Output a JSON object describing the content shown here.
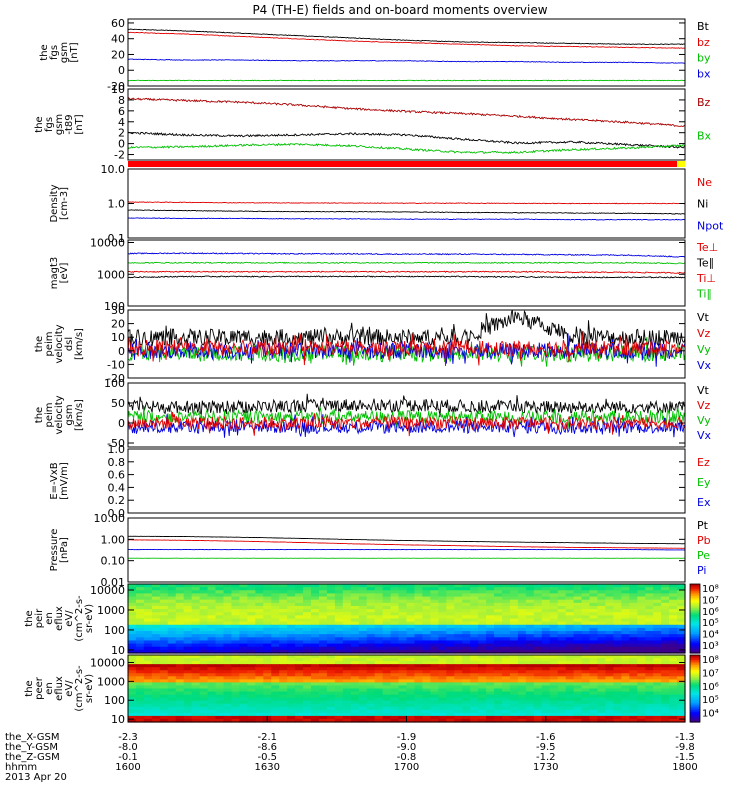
{
  "title": "P4 (TH-E) fields and on-board moments overview",
  "colors": {
    "black": "#000000",
    "red": "#e00000",
    "green": "#00c000",
    "blue": "#0000e0",
    "darkred": "#aa0000",
    "redbar": "#ff0000",
    "yellowbar": "#ffff00"
  },
  "chart_data": [
    {
      "type": "line",
      "name": "fgs",
      "ylabel": [
        "the",
        "fgs",
        "gsm",
        "[nT]"
      ],
      "ylim": [
        -20,
        65
      ],
      "ticks": [
        "60",
        "40",
        "20",
        "0",
        "-20"
      ],
      "tick_values": [
        60,
        40,
        20,
        0,
        -20
      ],
      "legend": [
        "Bt",
        "bz",
        "by",
        "bx"
      ],
      "legend_colors": [
        "black",
        "red",
        "green",
        "blue"
      ],
      "series": [
        {
          "color": "black",
          "values": [
            52,
            50,
            47,
            44,
            41,
            38,
            36,
            35,
            34,
            33,
            33
          ]
        },
        {
          "color": "red",
          "values": [
            48,
            46,
            43,
            40,
            37,
            35,
            33,
            31,
            30,
            29,
            28
          ]
        },
        {
          "color": "blue",
          "values": [
            14,
            13,
            13,
            12,
            12,
            12,
            11,
            11,
            10,
            10,
            9
          ]
        },
        {
          "color": "green",
          "values": [
            -13,
            -13,
            -13,
            -13,
            -13,
            -13,
            -13,
            -13,
            -13,
            -13,
            -13
          ]
        }
      ]
    },
    {
      "type": "line",
      "name": "fgs-dsl",
      "ylabel": [
        "the",
        "fgs",
        "gsm",
        "-t89",
        "[nT]"
      ],
      "ylim": [
        -3,
        10
      ],
      "ticks": [
        "10",
        "8",
        "6",
        "4",
        "2",
        "0",
        "-2"
      ],
      "tick_values": [
        10,
        8,
        6,
        4,
        2,
        0,
        -2
      ],
      "legend": [
        "Bz",
        "Bx"
      ],
      "legend_colors": [
        "darkred",
        "green"
      ],
      "series": [
        {
          "color": "darkred",
          "values": [
            8.2,
            7.9,
            7.6,
            7.1,
            6.4,
            5.9,
            5.5,
            5.0,
            4.4,
            3.9,
            3.2
          ]
        },
        {
          "color": "black",
          "values": [
            2.0,
            1.6,
            1.4,
            1.6,
            1.8,
            1.6,
            0.8,
            0.1,
            0.3,
            -0.2,
            -0.7
          ]
        },
        {
          "color": "green",
          "values": [
            -0.7,
            -0.6,
            -0.3,
            -0.1,
            -0.4,
            -1.0,
            -1.6,
            -1.6,
            -1.1,
            -0.8,
            -0.3
          ]
        }
      ]
    },
    {
      "type": "line",
      "name": "density",
      "ylabel": [
        "Density",
        "[cm-3]"
      ],
      "ylim": [
        0.1,
        10
      ],
      "ticks": [
        "10.0",
        "1.0",
        "0.1"
      ],
      "tick_values": [
        10,
        1,
        0.1
      ],
      "log": true,
      "legend": [
        "Ne",
        "Ni",
        "Npot"
      ],
      "legend_colors": [
        "red",
        "black",
        "blue"
      ],
      "series": [
        {
          "color": "red",
          "values": [
            1.1,
            1.08,
            1.05,
            1.04,
            1.03,
            1.02,
            1.02,
            1.01,
            1.0,
            1.0,
            1.0
          ]
        },
        {
          "color": "black",
          "values": [
            0.65,
            0.62,
            0.6,
            0.58,
            0.58,
            0.57,
            0.55,
            0.54,
            0.53,
            0.52,
            0.5
          ]
        },
        {
          "color": "blue",
          "values": [
            0.38,
            0.37,
            0.37,
            0.36,
            0.36,
            0.35,
            0.35,
            0.35,
            0.34,
            0.34,
            0.34
          ]
        }
      ]
    },
    {
      "type": "line",
      "name": "temperature",
      "ylabel": [
        "magt3",
        "[eV]"
      ],
      "ylim": [
        100,
        12000
      ],
      "ticks": [
        "10000",
        "1000",
        "100"
      ],
      "tick_values": [
        10000,
        1000,
        100
      ],
      "log": true,
      "legend": [
        "Te⊥",
        "Te∥",
        "Ti⊥",
        "Ti∥"
      ],
      "legend_colors": [
        "red",
        "black",
        "red",
        "green"
      ],
      "series": [
        {
          "color": "blue",
          "values": [
            4500,
            4600,
            4500,
            4400,
            4400,
            4300,
            4300,
            4200,
            4100,
            4000,
            3500
          ]
        },
        {
          "color": "green",
          "values": [
            2300,
            2300,
            2300,
            2300,
            2300,
            2300,
            2300,
            2300,
            2300,
            2300,
            2200
          ]
        },
        {
          "color": "red",
          "values": [
            1200,
            1200,
            1200,
            1200,
            1200,
            1200,
            1200,
            1200,
            1150,
            1150,
            1100
          ]
        },
        {
          "color": "black",
          "values": [
            800,
            850,
            850,
            850,
            850,
            850,
            850,
            820,
            800,
            800,
            800
          ]
        }
      ]
    },
    {
      "type": "line",
      "name": "peim-velocity-dsl",
      "ylabel": [
        "the",
        "peim",
        "velocity",
        "dsl",
        "[km/s]"
      ],
      "ylim": [
        -20,
        30
      ],
      "ticks": [
        "30",
        "20",
        "10",
        "0",
        "-10",
        "-20"
      ],
      "tick_values": [
        30,
        20,
        10,
        0,
        -10,
        -20
      ],
      "legend": [
        "Vt",
        "Vz",
        "Vy",
        "Vx"
      ],
      "legend_colors": [
        "black",
        "red",
        "green",
        "blue"
      ],
      "series": [
        {
          "color": "black",
          "values": [
            10,
            10,
            10,
            10,
            10,
            10,
            10,
            25,
            10,
            10,
            10
          ]
        },
        {
          "color": "green",
          "values": [
            -2,
            -2,
            -2,
            -2,
            -2,
            -2,
            -2,
            -2,
            -2,
            -2,
            -2
          ]
        },
        {
          "color": "blue",
          "values": [
            0,
            0,
            0,
            0,
            0,
            0,
            0,
            0,
            0,
            0,
            0
          ]
        },
        {
          "color": "red",
          "values": [
            2,
            2,
            2,
            2,
            2,
            2,
            2,
            2,
            2,
            2,
            2
          ]
        }
      ]
    },
    {
      "type": "line",
      "name": "peim-velocity-gsm",
      "ylabel": [
        "the",
        "peim",
        "velocity",
        "gsm",
        "[km/s]"
      ],
      "ylim": [
        -60,
        100
      ],
      "ticks": [
        "100",
        "50",
        "0",
        "-50"
      ],
      "tick_values": [
        100,
        50,
        0,
        -50
      ],
      "legend": [
        "Vt",
        "Vz",
        "Vy",
        "Vx"
      ],
      "legend_colors": [
        "black",
        "red",
        "green",
        "blue"
      ],
      "series": [
        {
          "color": "black",
          "values": [
            40,
            40,
            40,
            42,
            45,
            45,
            42,
            40,
            40,
            40,
            40
          ]
        },
        {
          "color": "green",
          "values": [
            15,
            15,
            15,
            15,
            15,
            15,
            15,
            15,
            15,
            15,
            15
          ]
        },
        {
          "color": "blue",
          "values": [
            -10,
            -10,
            -10,
            -10,
            -10,
            -10,
            -10,
            -10,
            -10,
            -10,
            -10
          ]
        },
        {
          "color": "red",
          "values": [
            0,
            0,
            0,
            0,
            0,
            0,
            0,
            0,
            0,
            0,
            0
          ]
        }
      ]
    },
    {
      "type": "line",
      "name": "efield",
      "ylabel": [
        "E=-VxB",
        "[mV/m]"
      ],
      "ylim": [
        0,
        1
      ],
      "ticks": [
        "1.0",
        "0.8",
        "0.6",
        "0.4",
        "0.2",
        "0.0"
      ],
      "tick_values": [
        1,
        0.8,
        0.6,
        0.4,
        0.2,
        0
      ],
      "legend": [
        "Ez",
        "Ey",
        "Ex"
      ],
      "legend_colors": [
        "red",
        "green",
        "blue"
      ],
      "series": []
    },
    {
      "type": "line",
      "name": "pressure",
      "ylabel": [
        "Pressure",
        "[nPa]"
      ],
      "ylim": [
        0.01,
        10
      ],
      "ticks": [
        "10.00",
        "1.00",
        "0.10",
        "0.01"
      ],
      "tick_values": [
        10,
        1,
        0.1,
        0.01
      ],
      "log": true,
      "legend": [
        "Pt",
        "Pb",
        "Pe",
        "Pi"
      ],
      "legend_colors": [
        "black",
        "red",
        "green",
        "blue"
      ],
      "series": [
        {
          "color": "black",
          "values": [
            1.4,
            1.35,
            1.25,
            1.12,
            0.98,
            0.88,
            0.8,
            0.74,
            0.69,
            0.65,
            0.62
          ]
        },
        {
          "color": "red",
          "values": [
            0.95,
            0.9,
            0.82,
            0.72,
            0.62,
            0.55,
            0.5,
            0.45,
            0.42,
            0.4,
            0.38
          ]
        },
        {
          "color": "blue",
          "values": [
            0.33,
            0.33,
            0.33,
            0.33,
            0.33,
            0.33,
            0.33,
            0.33,
            0.33,
            0.33,
            0.32
          ]
        },
        {
          "color": "green",
          "values": [
            0.13,
            0.13,
            0.13,
            0.13,
            0.13,
            0.13,
            0.13,
            0.13,
            0.13,
            0.13,
            0.13
          ]
        }
      ]
    },
    {
      "type": "heatmap",
      "name": "peir-eflux",
      "ylabel": [
        "the",
        "peir",
        "en",
        "eflux",
        "eV/",
        "(cm^2-s-",
        "sr-eV)"
      ],
      "ylim": [
        7,
        20000
      ],
      "ticks": [
        "10000",
        "1000",
        "100",
        "10"
      ],
      "tick_values": [
        10000,
        1000,
        100,
        10
      ],
      "log": true,
      "colorbar_ticks": [
        "10⁸",
        "10⁷",
        "10⁶",
        "10⁵",
        "10⁴",
        "10³"
      ]
    },
    {
      "type": "heatmap",
      "name": "peer-eflux",
      "ylabel": [
        "the",
        "peer",
        "en",
        "eflux",
        "eV/",
        "(cm^2-s-",
        "sr-eV)"
      ],
      "ylim": [
        7,
        25000
      ],
      "ticks": [
        "10000",
        "1000",
        "100",
        "10"
      ],
      "tick_values": [
        10000,
        1000,
        100,
        10
      ],
      "log": true,
      "colorbar_ticks": [
        "10⁸",
        "10⁷",
        "10⁶",
        "10⁵",
        "10⁴"
      ]
    }
  ],
  "xaxis": {
    "rows": [
      {
        "label": "the_X-GSM",
        "values": [
          "-2.3",
          "-2.1",
          "-1.9",
          "-1.6",
          "-1.3"
        ]
      },
      {
        "label": "the_Y-GSM",
        "values": [
          "-8.0",
          "-8.6",
          "-9.0",
          "-9.5",
          "-9.8"
        ]
      },
      {
        "label": "the_Z-GSM",
        "values": [
          "-0.1",
          "-0.5",
          "-0.8",
          "-1.2",
          "-1.5"
        ]
      },
      {
        "label": "hhmm",
        "values": [
          "1600",
          "1630",
          "1700",
          "1730",
          "1800"
        ]
      }
    ],
    "date": "2013 Apr 20"
  }
}
